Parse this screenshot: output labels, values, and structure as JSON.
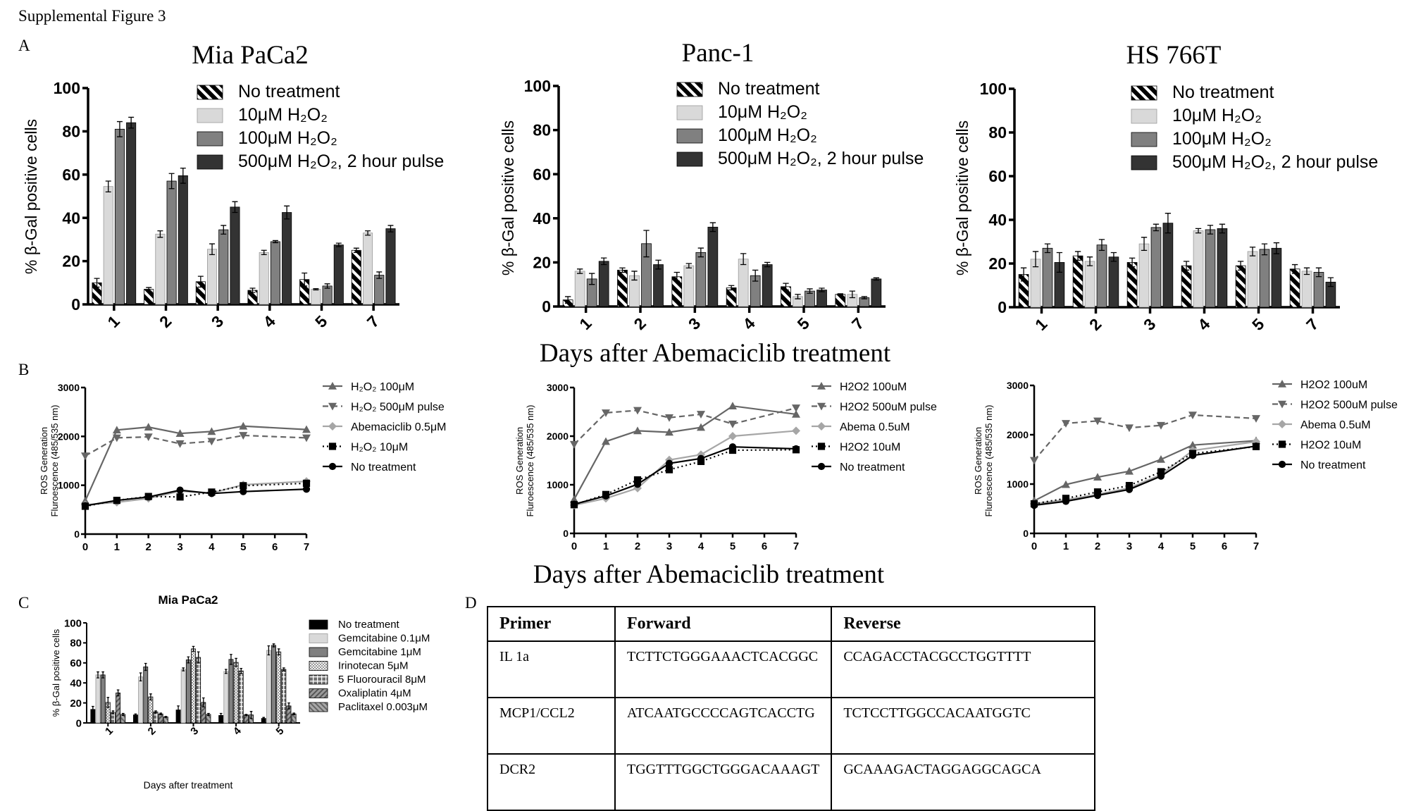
{
  "figure": {
    "title": "Supplemental Figure 3",
    "panels": {
      "a": "A",
      "b": "B",
      "c": "C",
      "d": "D"
    },
    "shared_xlabel_a": "Days after Abemaciclib treatment",
    "shared_xlabel_b": "Days after Abemaciclib treatment"
  },
  "chart_data": [
    {
      "type": "bar",
      "title": "Mia PaCa2",
      "ylabel": "% β-Gal positive cells",
      "xlabel": "",
      "ylim": [
        0,
        100
      ],
      "yticks": [
        0,
        20,
        40,
        60,
        80,
        100
      ],
      "categories": [
        "1",
        "2",
        "3",
        "4",
        "5",
        "7"
      ],
      "legend": "top-right",
      "series": [
        {
          "name": "No treatment",
          "color": "#000000",
          "pattern": "hatch",
          "values": [
            10,
            7,
            10.5,
            6.5,
            11.5,
            25
          ],
          "errors": [
            2,
            0.8,
            2.5,
            1,
            3,
            1
          ]
        },
        {
          "name": "10μM H₂O₂",
          "color": "#d9d9d9",
          "values": [
            54.5,
            32.5,
            25.5,
            24,
            7,
            33
          ],
          "errors": [
            2.5,
            1.5,
            2.5,
            1,
            0.3,
            1
          ]
        },
        {
          "name": "100μM H₂O₂",
          "color": "#808080",
          "values": [
            81,
            57,
            34.5,
            29,
            8.5,
            13.5
          ],
          "errors": [
            3.5,
            3.5,
            2,
            0.5,
            1,
            1.5
          ]
        },
        {
          "name": "500μM H₂O₂, 2 hour pulse",
          "color": "#333333",
          "values": [
            84,
            59.5,
            45,
            42.5,
            27.5,
            35
          ],
          "errors": [
            2.5,
            3.5,
            2.5,
            3,
            0.8,
            1.5
          ]
        }
      ]
    },
    {
      "type": "bar",
      "title": "Panc-1",
      "ylabel": "% β-Gal positive cells",
      "xlabel": "",
      "ylim": [
        0,
        100
      ],
      "yticks": [
        0,
        20,
        40,
        60,
        80,
        100
      ],
      "categories": [
        "1",
        "2",
        "3",
        "4",
        "5",
        "7"
      ],
      "legend": "top-right",
      "series": [
        {
          "name": "No treatment",
          "color": "#000000",
          "pattern": "hatch",
          "values": [
            3,
            16.5,
            13.5,
            8.5,
            9,
            5.5
          ],
          "errors": [
            1.5,
            1,
            2,
            1,
            1.5,
            0.3
          ]
        },
        {
          "name": "10μM H₂O₂",
          "color": "#d9d9d9",
          "values": [
            16,
            14,
            18.5,
            21.5,
            4.5,
            5.5
          ],
          "errors": [
            1,
            2,
            1,
            2.5,
            1,
            1.5
          ]
        },
        {
          "name": "100μM H₂O₂",
          "color": "#808080",
          "values": [
            12.5,
            28.5,
            24.5,
            14,
            7,
            4
          ],
          "errors": [
            2.5,
            6,
            2,
            2.5,
            1,
            0.5
          ]
        },
        {
          "name": "500μM H₂O₂, 2 hour pulse",
          "color": "#333333",
          "values": [
            20.5,
            19,
            36,
            19,
            7.5,
            12.5
          ],
          "errors": [
            1.5,
            2,
            2,
            1,
            0.8,
            0.5
          ]
        }
      ]
    },
    {
      "type": "bar",
      "title": "HS 766T",
      "ylabel": "% β-Gal positive cells",
      "xlabel": "",
      "ylim": [
        0,
        100
      ],
      "yticks": [
        0,
        20,
        40,
        60,
        80,
        100
      ],
      "categories": [
        "1",
        "2",
        "3",
        "4",
        "5",
        "7"
      ],
      "legend": "top-right",
      "series": [
        {
          "name": "No treatment",
          "color": "#000000",
          "pattern": "hatch",
          "values": [
            15,
            23.5,
            20.5,
            19,
            19,
            17.5
          ],
          "errors": [
            3,
            2,
            2,
            2,
            2,
            2
          ]
        },
        {
          "name": "10μM H₂O₂",
          "color": "#d9d9d9",
          "values": [
            22,
            21,
            29,
            35,
            25.5,
            16.5
          ],
          "errors": [
            3.5,
            2,
            3,
            1,
            2,
            1.5
          ]
        },
        {
          "name": "100μM H₂O₂",
          "color": "#808080",
          "values": [
            27,
            28.5,
            36.5,
            35.5,
            26.5,
            16
          ],
          "errors": [
            2,
            2.5,
            1.5,
            2,
            2.5,
            2
          ]
        },
        {
          "name": "500μM H₂O₂, 2 hour pulse",
          "color": "#333333",
          "values": [
            20.5,
            23,
            38.5,
            36,
            27,
            11.5
          ],
          "errors": [
            4.5,
            2,
            4.5,
            2,
            2.5,
            2
          ]
        }
      ]
    },
    {
      "type": "line",
      "ylabel": [
        "ROS Generation",
        "Fluroescence (485/535 nm)"
      ],
      "xlabel": "",
      "xlim": [
        0,
        7
      ],
      "ylim": [
        0,
        3000
      ],
      "xticks": [
        0,
        1,
        2,
        3,
        4,
        5,
        6,
        7
      ],
      "yticks": [
        0,
        1000,
        2000,
        3000
      ],
      "x": [
        0,
        1,
        2,
        3,
        4,
        5,
        7
      ],
      "legend": "right",
      "series": [
        {
          "name": "H₂O₂ 100μM",
          "color": "#666666",
          "line": "solid",
          "marker": "triangle-up",
          "values": [
            680,
            2130,
            2190,
            2060,
            2100,
            2210,
            2140
          ]
        },
        {
          "name": "H₂O₂ 500μM pulse",
          "color": "#666666",
          "line": "dashed",
          "marker": "triangle-down",
          "values": [
            1600,
            1970,
            1990,
            1850,
            1900,
            2020,
            1970
          ]
        },
        {
          "name": "Abemaciclib 0.5μM",
          "color": "#a6a6a6",
          "line": "solid",
          "marker": "diamond",
          "values": [
            600,
            650,
            730,
            880,
            840,
            1010,
            1080
          ]
        },
        {
          "name": "H₂O₂ 10μM",
          "color": "#000000",
          "line": "dotted",
          "marker": "square",
          "values": [
            570,
            690,
            770,
            760,
            860,
            990,
            1040
          ]
        },
        {
          "name": "No treatment",
          "color": "#000000",
          "line": "solid",
          "marker": "circle",
          "values": [
            580,
            690,
            760,
            900,
            830,
            870,
            920
          ]
        }
      ]
    },
    {
      "type": "line",
      "ylabel": [
        "ROS Generation",
        "Fluroescence (485/535 nm)"
      ],
      "xlabel": "",
      "xlim": [
        0,
        7
      ],
      "ylim": [
        0,
        3000
      ],
      "xticks": [
        0,
        1,
        2,
        3,
        4,
        5,
        6,
        7
      ],
      "yticks": [
        0,
        1000,
        2000,
        3000
      ],
      "x": [
        0,
        1,
        2,
        3,
        4,
        5,
        7
      ],
      "legend": "right",
      "series": [
        {
          "name": "H2O2 100uM",
          "color": "#666666",
          "line": "solid",
          "marker": "triangle-up",
          "values": [
            700,
            1890,
            2110,
            2080,
            2180,
            2620,
            2450
          ]
        },
        {
          "name": "H2O2 500uM pulse",
          "color": "#666666",
          "line": "dashed",
          "marker": "triangle-down",
          "values": [
            1830,
            2480,
            2530,
            2380,
            2450,
            2250,
            2580
          ]
        },
        {
          "name": "Abema 0.5uM",
          "color": "#a6a6a6",
          "line": "solid",
          "marker": "diamond",
          "values": [
            580,
            720,
            930,
            1510,
            1620,
            2000,
            2110
          ]
        },
        {
          "name": "H2O2 10uM",
          "color": "#000000",
          "line": "dotted",
          "marker": "square",
          "values": [
            590,
            800,
            1100,
            1310,
            1480,
            1710,
            1720
          ]
        },
        {
          "name": "No treatment",
          "color": "#000000",
          "line": "solid",
          "marker": "circle",
          "values": [
            600,
            770,
            1010,
            1440,
            1540,
            1780,
            1740
          ]
        }
      ]
    },
    {
      "type": "line",
      "ylabel": [
        "ROS Generation",
        "Fluroescence (485/535 nm)"
      ],
      "xlabel": "",
      "xlim": [
        0,
        7
      ],
      "ylim": [
        0,
        3000
      ],
      "xticks": [
        0,
        1,
        2,
        3,
        4,
        5,
        6,
        7
      ],
      "yticks": [
        0,
        1000,
        2000,
        3000
      ],
      "x": [
        0,
        1,
        2,
        3,
        4,
        5,
        7
      ],
      "legend": "right",
      "series": [
        {
          "name": "H2O2 100uM",
          "color": "#666666",
          "line": "solid",
          "marker": "triangle-up",
          "values": [
            660,
            990,
            1140,
            1260,
            1500,
            1790,
            1880
          ]
        },
        {
          "name": "H2O2 500uM pulse",
          "color": "#666666",
          "line": "dashed",
          "marker": "triangle-down",
          "values": [
            1480,
            2230,
            2280,
            2140,
            2190,
            2400,
            2330
          ]
        },
        {
          "name": "Abema 0.5uM",
          "color": "#a6a6a6",
          "line": "solid",
          "marker": "diamond",
          "values": [
            600,
            680,
            790,
            920,
            1190,
            1680,
            1860
          ]
        },
        {
          "name": "H2O2 10uM",
          "color": "#000000",
          "line": "dotted",
          "marker": "square",
          "values": [
            600,
            710,
            840,
            970,
            1250,
            1620,
            1760
          ]
        },
        {
          "name": "No treatment",
          "color": "#000000",
          "line": "solid",
          "marker": "circle",
          "values": [
            570,
            650,
            770,
            890,
            1160,
            1580,
            1770
          ]
        }
      ]
    },
    {
      "type": "bar",
      "title": "Mia PaCa2",
      "ylabel": "% β-Gal positive cells",
      "xlabel": "Days after treatment",
      "ylim": [
        0,
        100
      ],
      "yticks": [
        0,
        20,
        40,
        60,
        80,
        100
      ],
      "categories": [
        "1",
        "2",
        "3",
        "4",
        "5"
      ],
      "legend": "right",
      "series": [
        {
          "name": "No treatment",
          "color": "#000000",
          "values": [
            13.5,
            8,
            13,
            7.5,
            4.5
          ],
          "errors": [
            3,
            1,
            4,
            2,
            1
          ]
        },
        {
          "name": "Gemcitabine 0.1μM",
          "color": "#d9d9d9",
          "values": [
            48,
            46,
            53.5,
            51.5,
            72.5
          ],
          "errors": [
            3,
            4,
            1.5,
            2,
            4.5
          ]
        },
        {
          "name": "Gemcitabine 1μM",
          "color": "#808080",
          "values": [
            48,
            56,
            63,
            63.5,
            77.5
          ],
          "errors": [
            3,
            3.5,
            3,
            5,
            1.5
          ]
        },
        {
          "name": "Irinotecan 5μM",
          "color": "#e6e6e6",
          "pattern": "check",
          "values": [
            20.5,
            26,
            74,
            60.5,
            71
          ],
          "errors": [
            5,
            3,
            2.5,
            4,
            3
          ]
        },
        {
          "name": "5 Fluorouracil 8μM",
          "color": "#7a7a7a",
          "pattern": "grid",
          "values": [
            10.5,
            11,
            65.5,
            52,
            53.5
          ],
          "errors": [
            1.5,
            1,
            5.5,
            2.5,
            1.5
          ]
        },
        {
          "name": "Oxaliplatin 4μM",
          "color": "#8c8c8c",
          "pattern": "diag",
          "values": [
            30,
            9,
            20.5,
            8,
            17
          ],
          "errors": [
            3,
            0.8,
            4.5,
            0.5,
            3
          ]
        },
        {
          "name": "Paclitaxel 0.003μM",
          "color": "#9a9a9a",
          "pattern": "diag2",
          "values": [
            8.5,
            6,
            8.5,
            8,
            9
          ],
          "errors": [
            1,
            0.5,
            1,
            3.5,
            0.8
          ]
        }
      ]
    }
  ],
  "table": {
    "headers": [
      "Primer",
      "Forward",
      "Reverse"
    ],
    "rows": [
      [
        "IL 1a",
        "TCTTCTGGGAAACTCACGGC",
        "CCAGACCTACGCCTGGTTTT"
      ],
      [
        "MCP1/CCL2",
        "ATCAATGCCCCAGTCACCTG",
        "TCTCCTTGGCCACAATGGTC"
      ],
      [
        "DCR2",
        "TGGTTTGGCTGGGACAAAGT",
        "GCAAAGACTAGGAGGCAGCA"
      ]
    ]
  }
}
